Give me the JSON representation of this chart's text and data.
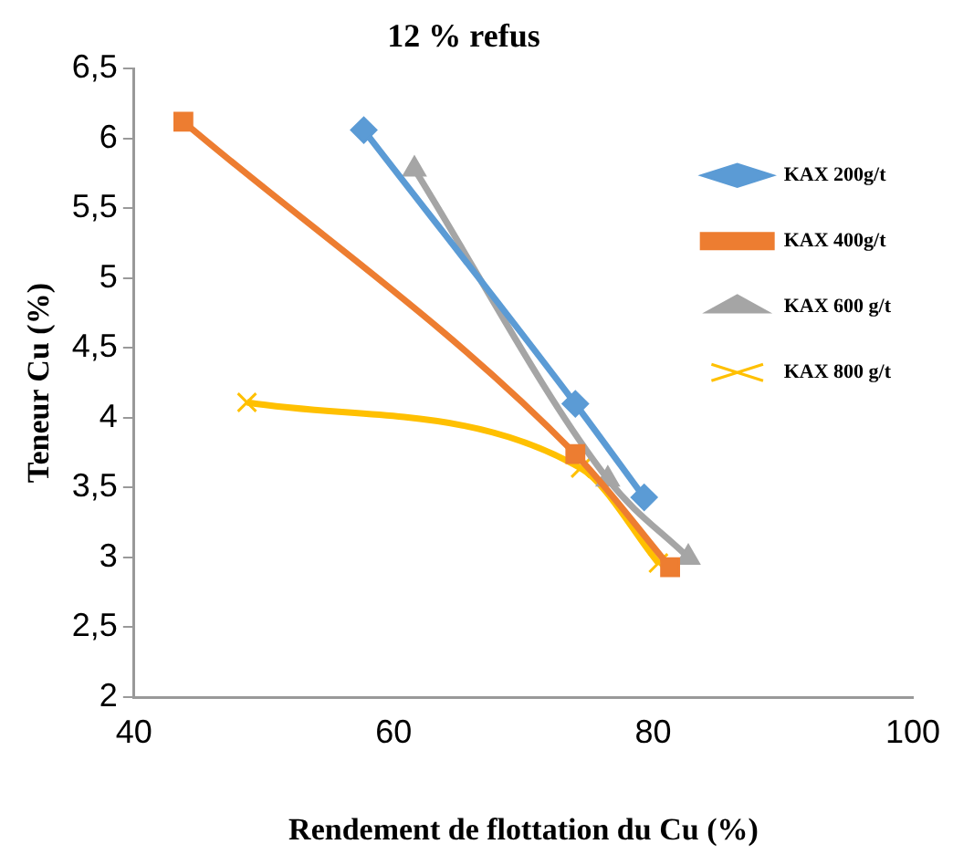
{
  "chart_data": {
    "type": "line",
    "title": "12 % refus",
    "xlabel": "Rendement de flottation du Cu (%)",
    "ylabel": "Teneur Cu (%)",
    "xlim": [
      40,
      100
    ],
    "xticks": [
      40,
      60,
      80,
      100
    ],
    "ylim": [
      2,
      6.5
    ],
    "yticks": [
      2,
      {
        "value": 2.5,
        "label": "2,5"
      },
      3,
      {
        "value": 3.5,
        "label": "3,5"
      },
      4,
      {
        "value": 4.5,
        "label": "4,5"
      },
      5,
      {
        "value": 5.5,
        "label": "5,5"
      },
      6,
      {
        "value": 6.5,
        "label": "6,5"
      }
    ],
    "grid": false,
    "legend": "top right",
    "series": [
      {
        "name": "KAX 200g/t",
        "color": "#5b9bd5",
        "marker": "diamond",
        "x": [
          57.7,
          74,
          79.3
        ],
        "values": [
          6.06,
          4.1,
          3.43
        ]
      },
      {
        "name": "KAX 400g/t",
        "color": "#ed7d31",
        "marker": "square",
        "x": [
          43.8,
          74,
          81.3
        ],
        "values": [
          6.12,
          3.74,
          2.93
        ]
      },
      {
        "name": "KAX 600 g/t",
        "color": "#a5a5a5",
        "marker": "triangle",
        "x": [
          61.6,
          76.5,
          82.7
        ],
        "values": [
          5.78,
          3.56,
          3.0
        ]
      },
      {
        "name": "KAX 800 g/t",
        "color": "#ffc000",
        "marker": "cross",
        "x": [
          48.7,
          74.4,
          80.4
        ],
        "values": [
          4.11,
          3.64,
          2.96
        ]
      }
    ]
  }
}
